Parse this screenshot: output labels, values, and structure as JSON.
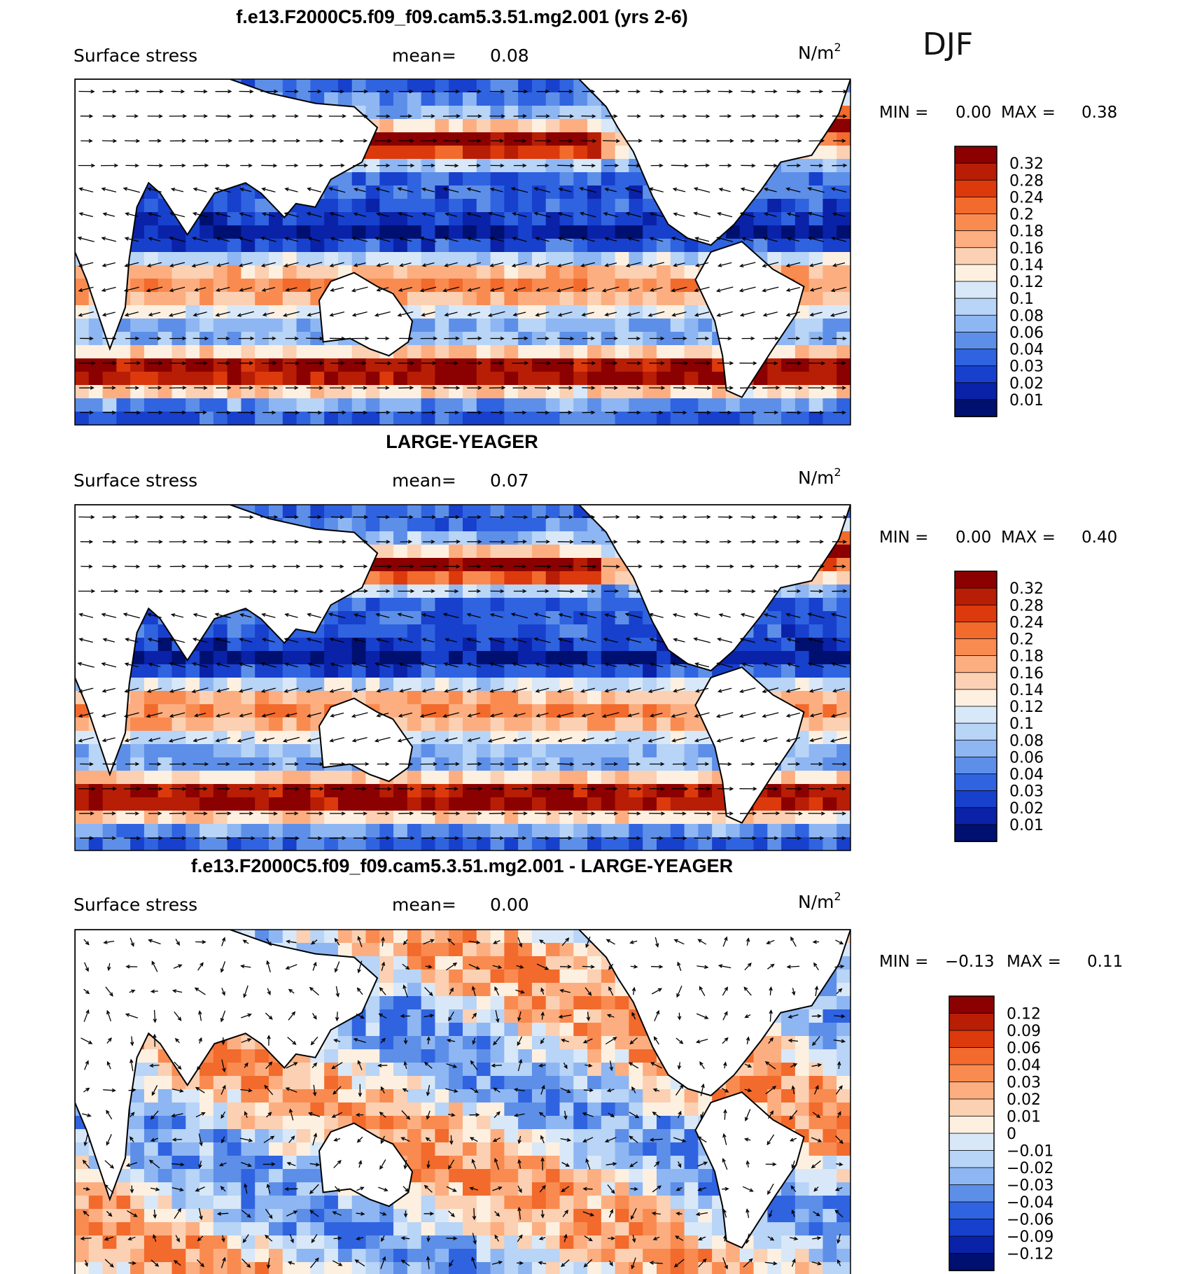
{
  "figure": {
    "season": "DJF"
  },
  "panels": [
    {
      "title": "f.e13.F2000C5.f09_f09.cam5.3.51.mg2.001 (yrs 2-6)",
      "variable": "Surface stress",
      "mean_label": "mean=",
      "mean": "0.08",
      "units": "N/m",
      "units_exp": "2",
      "min_label": "MIN =",
      "min": "0.00",
      "max_label": "MAX =",
      "max": "0.38",
      "colorbar": {
        "levels": [
          "0.32",
          "0.28",
          "0.24",
          "0.2",
          "0.18",
          "0.16",
          "0.14",
          "0.12",
          "0.1",
          "0.08",
          "0.06",
          "0.04",
          "0.03",
          "0.02",
          "0.01"
        ],
        "colors": [
          "#8b0000",
          "#b81e06",
          "#dc3a0c",
          "#f26a2c",
          "#f98b50",
          "#fcae80",
          "#fcd0b2",
          "#fdf0e0",
          "#d8e8f8",
          "#b8d4f6",
          "#8eb6f2",
          "#5d8fe8",
          "#2f63e0",
          "#1740cc",
          "#0a22a8",
          "#001070"
        ]
      }
    },
    {
      "title": "LARGE-YEAGER",
      "variable": "Surface stress",
      "mean_label": "mean=",
      "mean": "0.07",
      "units": "N/m",
      "units_exp": "2",
      "min_label": "MIN =",
      "min": "0.00",
      "max_label": "MAX =",
      "max": "0.40",
      "colorbar": {
        "levels": [
          "0.32",
          "0.28",
          "0.24",
          "0.2",
          "0.18",
          "0.16",
          "0.14",
          "0.12",
          "0.1",
          "0.08",
          "0.06",
          "0.04",
          "0.03",
          "0.02",
          "0.01"
        ],
        "colors": [
          "#8b0000",
          "#b81e06",
          "#dc3a0c",
          "#f26a2c",
          "#f98b50",
          "#fcae80",
          "#fcd0b2",
          "#fdf0e0",
          "#d8e8f8",
          "#b8d4f6",
          "#8eb6f2",
          "#5d8fe8",
          "#2f63e0",
          "#1740cc",
          "#0a22a8",
          "#001070"
        ]
      }
    },
    {
      "title": "f.e13.F2000C5.f09_f09.cam5.3.51.mg2.001 - LARGE-YEAGER",
      "variable": "Surface stress",
      "mean_label": "mean=",
      "mean": "0.00",
      "units": "N/m",
      "units_exp": "2",
      "min_label": "MIN =",
      "min": "−0.13",
      "max_label": "MAX =",
      "max": "0.11",
      "colorbar": {
        "levels": [
          "0.12",
          "0.09",
          "0.06",
          "0.04",
          "0.03",
          "0.02",
          "0.01",
          "0",
          "−0.01",
          "−0.02",
          "−0.03",
          "−0.04",
          "−0.06",
          "−0.09",
          "−0.12"
        ],
        "colors": [
          "#8b0000",
          "#b81e06",
          "#dc3a0c",
          "#f26a2c",
          "#f98b50",
          "#fcae80",
          "#fcd0b2",
          "#fdf0e0",
          "#d8e8f8",
          "#b8d4f6",
          "#8eb6f2",
          "#5d8fe8",
          "#2f63e0",
          "#1740cc",
          "#0a22a8",
          "#001070"
        ]
      }
    }
  ],
  "chart_data": [
    {
      "type": "heatmap",
      "title": "f.e13.F2000C5.f09_f09.cam5.3.51.mg2.001 (yrs 2-6)",
      "variable": "Surface stress",
      "units": "N/m2",
      "season": "DJF",
      "mean": 0.08,
      "min": 0.0,
      "max": 0.38,
      "contour_levels": [
        0.01,
        0.02,
        0.03,
        0.04,
        0.06,
        0.08,
        0.1,
        0.12,
        0.14,
        0.16,
        0.18,
        0.2,
        0.24,
        0.28,
        0.32
      ],
      "overlay": "wind stress vectors"
    },
    {
      "type": "heatmap",
      "title": "LARGE-YEAGER",
      "variable": "Surface stress",
      "units": "N/m2",
      "season": "DJF",
      "mean": 0.07,
      "min": 0.0,
      "max": 0.4,
      "contour_levels": [
        0.01,
        0.02,
        0.03,
        0.04,
        0.06,
        0.08,
        0.1,
        0.12,
        0.14,
        0.16,
        0.18,
        0.2,
        0.24,
        0.28,
        0.32
      ],
      "overlay": "wind stress vectors"
    },
    {
      "type": "heatmap",
      "title": "f.e13.F2000C5.f09_f09.cam5.3.51.mg2.001 - LARGE-YEAGER",
      "variable": "Surface stress",
      "units": "N/m2",
      "season": "DJF",
      "mean": 0.0,
      "min": -0.13,
      "max": 0.11,
      "contour_levels": [
        -0.12,
        -0.09,
        -0.06,
        -0.04,
        -0.03,
        -0.02,
        -0.01,
        0,
        0.01,
        0.02,
        0.03,
        0.04,
        0.06,
        0.09,
        0.12
      ],
      "overlay": "wind stress difference vectors"
    }
  ]
}
